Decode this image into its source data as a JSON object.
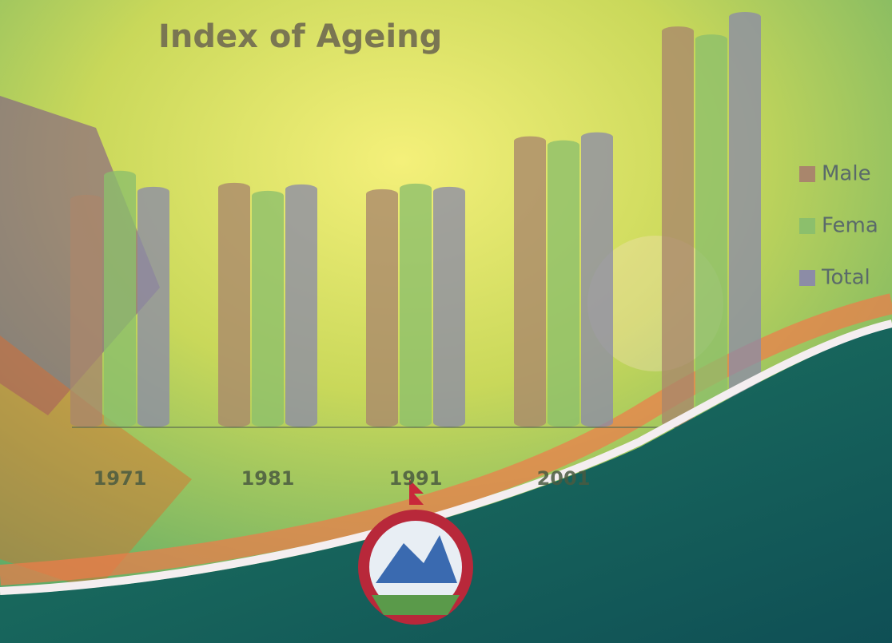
{
  "chart_data": {
    "type": "bar",
    "title": "Index of Ageing",
    "categories": [
      "1971",
      "1981",
      "1991",
      "2001",
      null
    ],
    "series": [
      {
        "name": "Male",
        "color": "#a9866c",
        "values": [
          29,
          30.5,
          29.7,
          36.3,
          50
        ]
      },
      {
        "name": "Fema",
        "color": "#8cbf6c",
        "values": [
          32,
          29.5,
          30.4,
          35.8,
          49
        ]
      },
      {
        "name": "Total",
        "color": "#8c8ca6",
        "values": [
          30,
          30.3,
          30.0,
          36.8,
          51.8
        ]
      }
    ],
    "legend": "right"
  }
}
